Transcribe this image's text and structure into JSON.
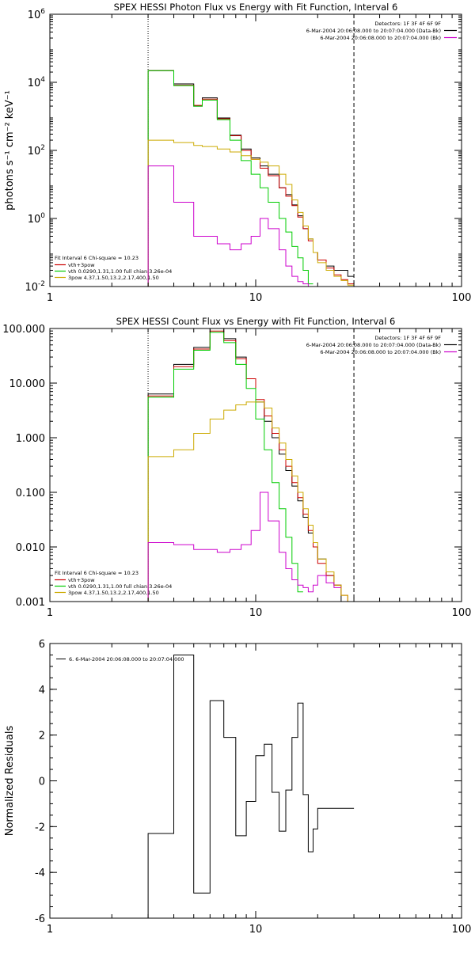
{
  "chart_data": [
    {
      "type": "line",
      "title": "SPEX HESSI Photon Flux vs Energy with Fit Function, Interval 6",
      "xlabel": "",
      "ylabel": "photons s⁻¹ cm⁻² keV⁻¹",
      "xscale": "log",
      "yscale": "log",
      "xlim": [
        1,
        100
      ],
      "ylim": [
        0.01,
        1000000
      ],
      "x_ticks": [
        {
          "v": 1,
          "label": "1"
        },
        {
          "v": 10,
          "label": "10"
        },
        {
          "v": 100,
          "label": "100"
        }
      ],
      "y_ticks": [
        {
          "v": 0.01,
          "label": "10",
          "exp": "-2"
        },
        {
          "v": 1,
          "label": "10",
          "exp": "0"
        },
        {
          "v": 100,
          "label": "10",
          "exp": "2"
        },
        {
          "v": 10000,
          "label": "10",
          "exp": "4"
        },
        {
          "v": 1000000,
          "label": "10",
          "exp": "6"
        }
      ],
      "vlines": [
        {
          "x": 3.0,
          "style": "dotted"
        },
        {
          "x": 30.0,
          "style": "dashed"
        }
      ],
      "legend_tr": {
        "lines": [
          "Detectors: 1F 3F 4F 6F 9F",
          "6-Mar-2004 20:06:08.000 to 20:07:04.000 (Data-Bk)",
          "6-Mar-2004 20:06:08.000 to 20:07:04.000 (Bk)"
        ],
        "colors": [
          "",
          "#000000",
          "#cc00cc"
        ]
      },
      "legend_bl": {
        "header": "Fit Interval  6    Chi-square = 10.23",
        "items": [
          {
            "label": "vth+3pow",
            "color": "#cc0000"
          },
          {
            "label": "vth 0.0290,1.31,1.00  full chian 3.26e-04",
            "color": "#00cc00"
          },
          {
            "label": "3pow 4.37,1.50,13.2,2.17,400,1.50",
            "color": "#ccaa00"
          }
        ]
      },
      "edges": [
        3,
        3.5,
        4,
        4.5,
        5,
        5.5,
        6,
        6.5,
        7,
        7.5,
        8,
        8.5,
        9,
        9.5,
        10,
        10.5,
        11,
        11.5,
        12,
        13,
        14,
        15,
        16,
        17,
        18,
        19,
        20,
        22,
        24,
        26,
        28,
        30,
        33
      ],
      "series": [
        {
          "name": "",
          "color": "#000000",
          "values": [
            22000,
            22000,
            9000,
            9000,
            2000,
            3500,
            3500,
            900,
            900,
            280,
            280,
            110,
            110,
            60,
            60,
            35,
            35,
            20,
            20,
            8,
            5,
            2.5,
            1.2,
            0.5,
            0.25,
            0.1,
            0.06,
            0.04,
            0.03,
            0.03,
            0.02,
            null
          ]
        },
        {
          "name": "vth+3pow",
          "color": "#cc0000",
          "values": [
            22000,
            22000,
            8200,
            8200,
            2100,
            3200,
            3200,
            850,
            850,
            270,
            270,
            100,
            100,
            55,
            55,
            30,
            30,
            18,
            18,
            8,
            4.5,
            2.4,
            1.1,
            0.5,
            0.22,
            0.1,
            0.06,
            0.035,
            0.022,
            0.016,
            0.012,
            null
          ]
        },
        {
          "name": "vth",
          "color": "#00cc00",
          "values": [
            22000,
            22000,
            8000,
            8000,
            2000,
            3000,
            3000,
            800,
            800,
            200,
            200,
            50,
            50,
            20,
            20,
            8,
            8,
            3,
            3,
            1,
            0.4,
            0.15,
            0.07,
            0.03,
            0.012,
            null,
            null,
            null,
            null,
            null,
            null,
            null
          ]
        },
        {
          "name": "3pow",
          "color": "#ccaa00",
          "values": [
            200,
            200,
            170,
            170,
            140,
            130,
            130,
            110,
            110,
            90,
            90,
            70,
            70,
            55,
            55,
            45,
            45,
            35,
            35,
            20,
            10,
            3.5,
            1.5,
            0.6,
            0.25,
            0.1,
            0.05,
            0.03,
            0.02,
            0.015,
            0.011,
            null
          ]
        },
        {
          "name": "Bk",
          "color": "#cc00cc",
          "values": [
            35,
            35,
            3,
            3,
            0.3,
            0.3,
            0.3,
            0.18,
            0.18,
            0.12,
            0.12,
            0.18,
            0.18,
            0.3,
            0.3,
            1,
            1,
            0.5,
            0.5,
            0.12,
            0.04,
            0.02,
            0.014,
            0.012,
            0.01,
            0.01,
            null,
            null,
            null,
            null,
            null,
            null
          ]
        }
      ]
    },
    {
      "type": "line",
      "title": "SPEX HESSI Count Flux vs Energy with Fit Function, Interval 6",
      "xlabel": "",
      "ylabel": "",
      "xscale": "log",
      "yscale": "log",
      "xlim": [
        1,
        100
      ],
      "ylim": [
        0.001,
        100
      ],
      "x_ticks": [
        {
          "v": 1,
          "label": "1"
        },
        {
          "v": 10,
          "label": "10"
        },
        {
          "v": 100,
          "label": "100"
        }
      ],
      "y_ticks": [
        {
          "v": 0.001,
          "label": "0.001"
        },
        {
          "v": 0.01,
          "label": "0.010"
        },
        {
          "v": 0.1,
          "label": "0.100"
        },
        {
          "v": 1,
          "label": "1.000"
        },
        {
          "v": 10,
          "label": "10.000"
        },
        {
          "v": 100,
          "label": "100.000"
        }
      ],
      "vlines": [
        {
          "x": 3.0,
          "style": "dotted"
        },
        {
          "x": 30.0,
          "style": "dashed"
        }
      ],
      "legend_tr": {
        "lines": [
          "Detectors: 1F 3F 4F 6F 9F",
          "6-Mar-2004 20:06:08.000 to 20:07:04.000 (Data-Bk)",
          "6-Mar-2004 20:06:08.000 to 20:07:04.000 (Bk)"
        ],
        "colors": [
          "",
          "#000000",
          "#cc00cc"
        ]
      },
      "legend_bl": {
        "header": "Fit Interval  6    Chi-square = 10.23",
        "items": [
          {
            "label": "vth+3pow",
            "color": "#cc0000"
          },
          {
            "label": "vth 0.0290,1.31,1.00  full chian 3.26e-04",
            "color": "#00cc00"
          },
          {
            "label": "3pow 4.37,1.50,13.2,2.17,400,1.50",
            "color": "#ccaa00"
          }
        ]
      },
      "edges": [
        3,
        3.5,
        4,
        4.5,
        5,
        5.5,
        6,
        6.5,
        7,
        7.5,
        8,
        8.5,
        9,
        9.5,
        10,
        10.5,
        11,
        11.5,
        12,
        13,
        14,
        15,
        16,
        17,
        18,
        19,
        20,
        22,
        24,
        26,
        28,
        30,
        33
      ],
      "series": [
        {
          "name": "",
          "color": "#000000",
          "values": [
            6.3,
            6.3,
            22,
            22,
            45,
            45,
            100,
            100,
            65,
            65,
            30,
            30,
            12,
            12,
            4.5,
            4.5,
            2,
            2,
            1,
            0.5,
            0.25,
            0.13,
            0.07,
            0.035,
            0.018,
            0.01,
            0.006,
            0.003,
            0.002,
            0.001,
            0.001,
            null
          ]
        },
        {
          "name": "vth+3pow",
          "color": "#cc0000",
          "values": [
            5.8,
            5.8,
            20,
            20,
            42,
            42,
            90,
            90,
            60,
            60,
            28,
            28,
            12,
            12,
            5,
            5,
            2.5,
            2.5,
            1.2,
            0.6,
            0.3,
            0.15,
            0.08,
            0.04,
            0.02,
            0.01,
            0.005,
            0.003,
            0.002,
            0.0013,
            0.001,
            null
          ]
        },
        {
          "name": "vth",
          "color": "#00cc00",
          "values": [
            5.5,
            5.5,
            18,
            18,
            40,
            40,
            85,
            85,
            55,
            55,
            22,
            22,
            8,
            8,
            2.2,
            2.2,
            0.6,
            0.6,
            0.15,
            0.05,
            0.015,
            0.005,
            0.0015,
            null,
            null,
            null,
            null,
            null,
            null,
            null,
            null,
            null
          ]
        },
        {
          "name": "3pow",
          "color": "#ccaa00",
          "values": [
            0.45,
            0.45,
            0.6,
            0.6,
            1.2,
            1.2,
            2.2,
            2.2,
            3.2,
            3.2,
            4,
            4,
            4.5,
            4.5,
            4.5,
            4.5,
            3.5,
            3.5,
            1.5,
            0.8,
            0.4,
            0.2,
            0.1,
            0.05,
            0.025,
            0.012,
            0.006,
            0.0035,
            0.002,
            0.0013,
            0.001,
            null
          ]
        },
        {
          "name": "Bk",
          "color": "#cc00cc",
          "values": [
            0.012,
            0.012,
            0.011,
            0.011,
            0.009,
            0.009,
            0.009,
            0.008,
            0.008,
            0.009,
            0.009,
            0.011,
            0.011,
            0.02,
            0.02,
            0.1,
            0.1,
            0.03,
            0.03,
            0.008,
            0.004,
            0.0025,
            0.002,
            0.0018,
            0.0015,
            0.002,
            0.003,
            0.0022,
            0.0018,
            null,
            null,
            null
          ]
        }
      ]
    },
    {
      "type": "line",
      "title": "",
      "xlabel": "",
      "ylabel": "Normalized Residuals",
      "xscale": "log",
      "yscale": "linear",
      "xlim": [
        1,
        100
      ],
      "ylim": [
        -6,
        6
      ],
      "x_ticks": [
        {
          "v": 1,
          "label": "1"
        },
        {
          "v": 10,
          "label": "10"
        },
        {
          "v": 100,
          "label": "100"
        }
      ],
      "y_ticks": [
        {
          "v": -6,
          "label": "-6"
        },
        {
          "v": -4,
          "label": "-4"
        },
        {
          "v": -2,
          "label": "-2"
        },
        {
          "v": 0,
          "label": "0"
        },
        {
          "v": 2,
          "label": "2"
        },
        {
          "v": 4,
          "label": "4"
        },
        {
          "v": 6,
          "label": "6"
        }
      ],
      "vlines": [],
      "legend_tl": {
        "line": "6.  6-Mar-2004 20:06:08.000 to 20:07:04.000"
      },
      "edges": [
        3,
        4,
        5,
        6,
        7,
        8,
        9,
        10,
        11,
        12,
        13,
        14,
        15,
        16,
        17,
        18,
        19,
        20,
        22,
        24,
        26,
        28,
        30
      ],
      "series": [
        {
          "name": "",
          "color": "#000000",
          "values": [
            -2.3,
            5.5,
            -4.9,
            3.5,
            1.9,
            -2.4,
            -0.9,
            1.1,
            1.6,
            -0.5,
            -2.2,
            -0.4,
            1.9,
            3.4,
            -0.6,
            -3.1,
            -2.1,
            -1.2,
            -1.2,
            -1.2,
            -1.2,
            -1.2
          ]
        }
      ]
    }
  ]
}
